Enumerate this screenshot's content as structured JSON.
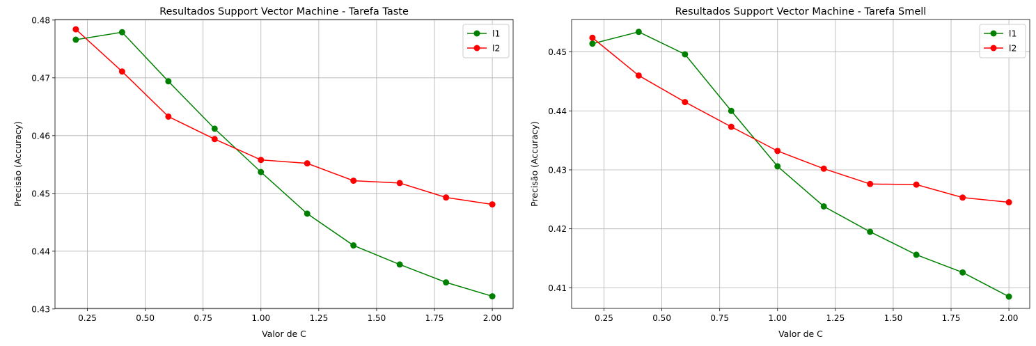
{
  "chart_data": [
    {
      "type": "line",
      "title": "Resultados Support Vector Machine - Tarefa Taste",
      "xlabel": "Valor de C",
      "ylabel": "Precisão (Accuracy)",
      "x": [
        0.2,
        0.4,
        0.6,
        0.8,
        1.0,
        1.2,
        1.4,
        1.6,
        1.8,
        2.0
      ],
      "xlim": [
        0.11,
        2.09
      ],
      "ylim": [
        0.4301,
        0.4801
      ],
      "xticks": [
        0.25,
        0.5,
        0.75,
        1.0,
        1.25,
        1.5,
        1.75,
        2.0
      ],
      "xtick_labels": [
        "0.25",
        "0.50",
        "0.75",
        "1.00",
        "1.25",
        "1.50",
        "1.75",
        "2.00"
      ],
      "yticks": [
        0.43,
        0.44,
        0.45,
        0.46,
        0.47,
        0.48
      ],
      "ytick_labels": [
        "0.43",
        "0.44",
        "0.45",
        "0.46",
        "0.47",
        "0.48"
      ],
      "grid": true,
      "legend_position": "top-right",
      "series": [
        {
          "name": "l1",
          "color": "#008000",
          "values": [
            0.4766,
            0.4779,
            0.4694,
            0.4612,
            0.4537,
            0.4465,
            0.441,
            0.4377,
            0.4346,
            0.4322
          ]
        },
        {
          "name": "l2",
          "color": "#ff0000",
          "values": [
            0.4784,
            0.4711,
            0.4633,
            0.4594,
            0.4558,
            0.4552,
            0.4522,
            0.4518,
            0.4493,
            0.4481
          ]
        }
      ]
    },
    {
      "type": "line",
      "title": "Resultados Support Vector Machine - Tarefa Smell",
      "xlabel": "Valor de C",
      "ylabel": "Precisão (Accuracy)",
      "x": [
        0.2,
        0.4,
        0.6,
        0.8,
        1.0,
        1.2,
        1.4,
        1.6,
        1.8,
        2.0
      ],
      "xlim": [
        0.11,
        2.09
      ],
      "ylim": [
        0.4065,
        0.4555
      ],
      "xticks": [
        0.25,
        0.5,
        0.75,
        1.0,
        1.25,
        1.5,
        1.75,
        2.0
      ],
      "xtick_labels": [
        "0.25",
        "0.50",
        "0.75",
        "1.00",
        "1.25",
        "1.50",
        "1.75",
        "2.00"
      ],
      "yticks": [
        0.41,
        0.42,
        0.43,
        0.44,
        0.45
      ],
      "ytick_labels": [
        "0.41",
        "0.42",
        "0.43",
        "0.44",
        "0.45"
      ],
      "grid": true,
      "legend_position": "top-right",
      "series": [
        {
          "name": "l1",
          "color": "#008000",
          "values": [
            0.4514,
            0.4534,
            0.4496,
            0.44,
            0.4306,
            0.4238,
            0.4195,
            0.4156,
            0.4126,
            0.4085
          ]
        },
        {
          "name": "l2",
          "color": "#ff0000",
          "values": [
            0.4524,
            0.446,
            0.4415,
            0.4373,
            0.4332,
            0.4302,
            0.4276,
            0.4275,
            0.4253,
            0.4245
          ]
        }
      ]
    }
  ]
}
